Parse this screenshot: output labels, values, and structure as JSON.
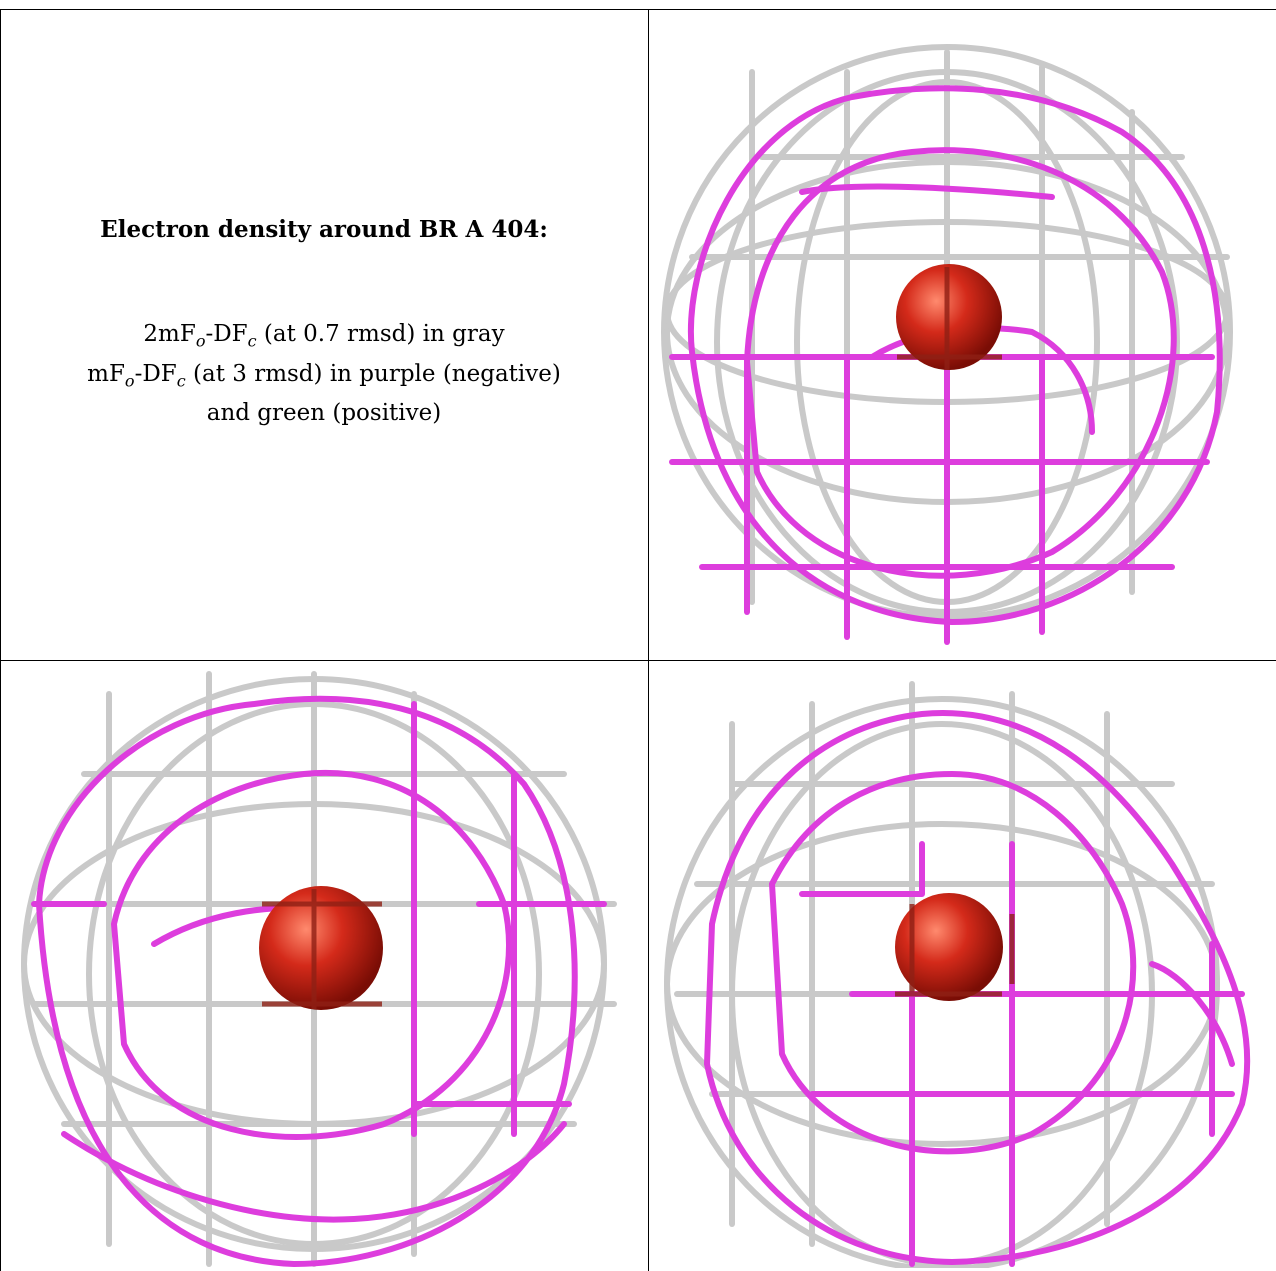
{
  "caption": {
    "title": "Electron density around BR A 404:",
    "line1": {
      "a": "2mF",
      "b": "o",
      "c": "-DF",
      "d": "c",
      "e": " (at 0.7 rmsd) in gray"
    },
    "line2": {
      "a": "mF",
      "b": "o",
      "c": "-DF",
      "d": "c",
      "e": " (at 3 rmsd) in purple (negative)"
    },
    "line3": "and green (positive)"
  },
  "colors": {
    "gray_mesh": "#c8c8c8",
    "purple_mesh": "#e040e0",
    "atom": "#d42a1a",
    "border": "#000000"
  },
  "panels": [
    {
      "name": "view-top-right"
    },
    {
      "name": "view-bottom-left"
    },
    {
      "name": "view-bottom-right"
    }
  ]
}
